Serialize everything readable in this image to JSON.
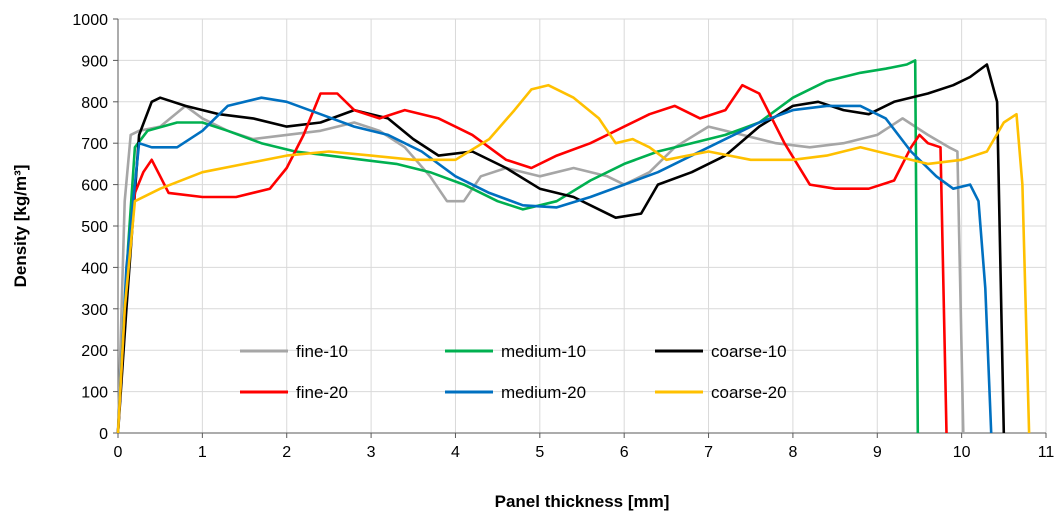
{
  "chart_data": {
    "type": "line",
    "title": "",
    "xlabel": "Panel thickness [mm]",
    "ylabel": "Density [kg/m³]",
    "xlim": [
      0,
      11
    ],
    "ylim": [
      0,
      1000
    ],
    "x_ticks": [
      0,
      1,
      2,
      3,
      4,
      5,
      6,
      7,
      8,
      9,
      10,
      11
    ],
    "y_ticks": [
      0,
      100,
      200,
      300,
      400,
      500,
      600,
      700,
      800,
      900,
      1000
    ],
    "grid": true,
    "legend_position": "bottom-center",
    "series": [
      {
        "name": "fine-10",
        "color": "#a6a6a6",
        "points": [
          [
            0,
            0
          ],
          [
            0.08,
            560
          ],
          [
            0.15,
            720
          ],
          [
            0.25,
            730
          ],
          [
            0.5,
            740
          ],
          [
            0.8,
            790
          ],
          [
            1.0,
            760
          ],
          [
            1.3,
            730
          ],
          [
            1.6,
            710
          ],
          [
            2.0,
            720
          ],
          [
            2.4,
            730
          ],
          [
            2.8,
            750
          ],
          [
            3.1,
            730
          ],
          [
            3.4,
            690
          ],
          [
            3.7,
            620
          ],
          [
            3.9,
            560
          ],
          [
            4.1,
            560
          ],
          [
            4.3,
            620
          ],
          [
            4.6,
            640
          ],
          [
            5.0,
            620
          ],
          [
            5.4,
            640
          ],
          [
            5.8,
            620
          ],
          [
            6.0,
            600
          ],
          [
            6.3,
            630
          ],
          [
            6.6,
            690
          ],
          [
            7.0,
            740
          ],
          [
            7.4,
            720
          ],
          [
            7.8,
            700
          ],
          [
            8.2,
            690
          ],
          [
            8.6,
            700
          ],
          [
            9.0,
            720
          ],
          [
            9.3,
            760
          ],
          [
            9.6,
            720
          ],
          [
            9.85,
            690
          ],
          [
            9.95,
            680
          ],
          [
            10.02,
            0
          ]
        ]
      },
      {
        "name": "medium-10",
        "color": "#00b050",
        "points": [
          [
            0,
            0
          ],
          [
            0.12,
            450
          ],
          [
            0.2,
            690
          ],
          [
            0.35,
            730
          ],
          [
            0.7,
            750
          ],
          [
            1.0,
            750
          ],
          [
            1.3,
            730
          ],
          [
            1.7,
            700
          ],
          [
            2.1,
            680
          ],
          [
            2.5,
            670
          ],
          [
            2.9,
            660
          ],
          [
            3.3,
            650
          ],
          [
            3.7,
            630
          ],
          [
            4.1,
            600
          ],
          [
            4.5,
            560
          ],
          [
            4.8,
            540
          ],
          [
            5.2,
            560
          ],
          [
            5.6,
            610
          ],
          [
            6.0,
            650
          ],
          [
            6.4,
            680
          ],
          [
            6.8,
            700
          ],
          [
            7.2,
            720
          ],
          [
            7.6,
            750
          ],
          [
            8.0,
            810
          ],
          [
            8.4,
            850
          ],
          [
            8.8,
            870
          ],
          [
            9.1,
            880
          ],
          [
            9.35,
            890
          ],
          [
            9.45,
            900
          ],
          [
            9.48,
            0
          ]
        ]
      },
      {
        "name": "coarse-10",
        "color": "#000000",
        "points": [
          [
            0,
            0
          ],
          [
            0.1,
            300
          ],
          [
            0.25,
            720
          ],
          [
            0.4,
            800
          ],
          [
            0.5,
            810
          ],
          [
            0.8,
            790
          ],
          [
            1.2,
            770
          ],
          [
            1.6,
            760
          ],
          [
            2.0,
            740
          ],
          [
            2.4,
            750
          ],
          [
            2.8,
            780
          ],
          [
            3.2,
            760
          ],
          [
            3.5,
            710
          ],
          [
            3.8,
            670
          ],
          [
            4.2,
            680
          ],
          [
            4.6,
            640
          ],
          [
            5.0,
            590
          ],
          [
            5.4,
            570
          ],
          [
            5.7,
            540
          ],
          [
            5.9,
            520
          ],
          [
            6.2,
            530
          ],
          [
            6.4,
            600
          ],
          [
            6.8,
            630
          ],
          [
            7.2,
            670
          ],
          [
            7.6,
            740
          ],
          [
            8.0,
            790
          ],
          [
            8.3,
            800
          ],
          [
            8.6,
            780
          ],
          [
            8.9,
            770
          ],
          [
            9.2,
            800
          ],
          [
            9.6,
            820
          ],
          [
            9.9,
            840
          ],
          [
            10.1,
            860
          ],
          [
            10.3,
            890
          ],
          [
            10.42,
            800
          ],
          [
            10.5,
            0
          ]
        ]
      },
      {
        "name": "fine-20",
        "color": "#ff0000",
        "points": [
          [
            0,
            0
          ],
          [
            0.08,
            300
          ],
          [
            0.2,
            580
          ],
          [
            0.3,
            630
          ],
          [
            0.4,
            660
          ],
          [
            0.5,
            620
          ],
          [
            0.6,
            580
          ],
          [
            1.0,
            570
          ],
          [
            1.4,
            570
          ],
          [
            1.8,
            590
          ],
          [
            2.0,
            640
          ],
          [
            2.2,
            720
          ],
          [
            2.4,
            820
          ],
          [
            2.6,
            820
          ],
          [
            2.8,
            780
          ],
          [
            3.1,
            760
          ],
          [
            3.4,
            780
          ],
          [
            3.8,
            760
          ],
          [
            4.2,
            720
          ],
          [
            4.6,
            660
          ],
          [
            4.9,
            640
          ],
          [
            5.2,
            670
          ],
          [
            5.6,
            700
          ],
          [
            6.0,
            740
          ],
          [
            6.3,
            770
          ],
          [
            6.6,
            790
          ],
          [
            6.9,
            760
          ],
          [
            7.2,
            780
          ],
          [
            7.4,
            840
          ],
          [
            7.6,
            820
          ],
          [
            7.9,
            700
          ],
          [
            8.2,
            600
          ],
          [
            8.5,
            590
          ],
          [
            8.9,
            590
          ],
          [
            9.2,
            610
          ],
          [
            9.4,
            690
          ],
          [
            9.5,
            720
          ],
          [
            9.6,
            700
          ],
          [
            9.75,
            690
          ],
          [
            9.82,
            0
          ]
        ]
      },
      {
        "name": "medium-20",
        "color": "#0070c0",
        "points": [
          [
            0,
            0
          ],
          [
            0.1,
            400
          ],
          [
            0.25,
            700
          ],
          [
            0.4,
            690
          ],
          [
            0.7,
            690
          ],
          [
            1.0,
            730
          ],
          [
            1.3,
            790
          ],
          [
            1.7,
            810
          ],
          [
            2.0,
            800
          ],
          [
            2.4,
            770
          ],
          [
            2.8,
            740
          ],
          [
            3.2,
            720
          ],
          [
            3.6,
            680
          ],
          [
            4.0,
            620
          ],
          [
            4.4,
            580
          ],
          [
            4.8,
            550
          ],
          [
            5.2,
            545
          ],
          [
            5.6,
            570
          ],
          [
            6.0,
            600
          ],
          [
            6.4,
            630
          ],
          [
            6.8,
            670
          ],
          [
            7.2,
            710
          ],
          [
            7.6,
            750
          ],
          [
            8.0,
            780
          ],
          [
            8.4,
            790
          ],
          [
            8.8,
            790
          ],
          [
            9.1,
            760
          ],
          [
            9.4,
            680
          ],
          [
            9.7,
            620
          ],
          [
            9.9,
            590
          ],
          [
            10.1,
            600
          ],
          [
            10.2,
            560
          ],
          [
            10.28,
            350
          ],
          [
            10.35,
            0
          ]
        ]
      },
      {
        "name": "coarse-20",
        "color": "#ffc000",
        "points": [
          [
            0,
            0
          ],
          [
            0.08,
            300
          ],
          [
            0.2,
            560
          ],
          [
            0.5,
            590
          ],
          [
            1.0,
            630
          ],
          [
            1.5,
            650
          ],
          [
            2.0,
            670
          ],
          [
            2.5,
            680
          ],
          [
            3.0,
            670
          ],
          [
            3.5,
            660
          ],
          [
            4.0,
            660
          ],
          [
            4.4,
            710
          ],
          [
            4.7,
            780
          ],
          [
            4.9,
            830
          ],
          [
            5.1,
            840
          ],
          [
            5.4,
            810
          ],
          [
            5.7,
            760
          ],
          [
            5.9,
            700
          ],
          [
            6.1,
            710
          ],
          [
            6.3,
            690
          ],
          [
            6.5,
            660
          ],
          [
            7.0,
            680
          ],
          [
            7.5,
            660
          ],
          [
            8.0,
            660
          ],
          [
            8.4,
            670
          ],
          [
            8.8,
            690
          ],
          [
            9.2,
            670
          ],
          [
            9.6,
            650
          ],
          [
            10.0,
            660
          ],
          [
            10.3,
            680
          ],
          [
            10.5,
            750
          ],
          [
            10.65,
            770
          ],
          [
            10.72,
            600
          ],
          [
            10.8,
            0
          ]
        ]
      }
    ]
  }
}
